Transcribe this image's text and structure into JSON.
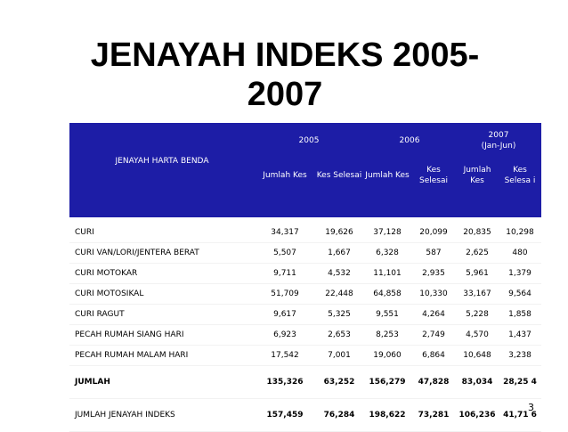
{
  "slide": {
    "title_line1": "JENAYAH INDEKS 2005-",
    "title_line2": "2007",
    "page_number": "3"
  },
  "table": {
    "category_header": "JENAYAH HARTA BENDA",
    "year_2005": "2005",
    "year_2006": "2006",
    "year_2007": "2007",
    "year_2007_note": "(Jan-Jun)",
    "col_jumlah_kes_2005": "Jumlah Kes",
    "col_kes_selesai_2005": "Kes Selesai",
    "col_jumlah_kes_2006": "Jumlah Kes",
    "col_kes_selesai_2006": "Kes Selesai",
    "col_jumlah_kes_2007": "Jumlah Kes",
    "col_kes_selesai_2007": "Kes Selesa i",
    "rows": [
      {
        "name": "CURI",
        "v": [
          "34,317",
          "19,626",
          "37,128",
          "20,099",
          "20,835",
          "10,298"
        ]
      },
      {
        "name": "CURI VAN/LORI/JENTERA BERAT",
        "v": [
          "5,507",
          "1,667",
          "6,328",
          "587",
          "2,625",
          "480"
        ]
      },
      {
        "name": "CURI MOTOKAR",
        "v": [
          "9,711",
          "4,532",
          "11,101",
          "2,935",
          "5,961",
          "1,379"
        ]
      },
      {
        "name": "CURI MOTOSIKAL",
        "v": [
          "51,709",
          "22,448",
          "64,858",
          "10,330",
          "33,167",
          "9,564"
        ]
      },
      {
        "name": "CURI RAGUT",
        "v": [
          "9,617",
          "5,325",
          "9,551",
          "4,264",
          "5,228",
          "1,858"
        ]
      },
      {
        "name": "PECAH RUMAH SIANG HARI",
        "v": [
          "6,923",
          "2,653",
          "8,253",
          "2,749",
          "4,570",
          "1,437"
        ]
      },
      {
        "name": "PECAH RUMAH MALAM HARI",
        "v": [
          "17,542",
          "7,001",
          "19,060",
          "6,864",
          "10,648",
          "3,238"
        ]
      },
      {
        "name": "JUMLAH",
        "v": [
          "135,326",
          "63,252",
          "156,279",
          "47,828",
          "83,034",
          "28,25 4"
        ]
      },
      {
        "name": "JUMLAH JENAYAH INDEKS",
        "v": [
          "157,459",
          "76,284",
          "198,622",
          "73,281",
          "106,236",
          "41,71 6"
        ]
      }
    ]
  }
}
